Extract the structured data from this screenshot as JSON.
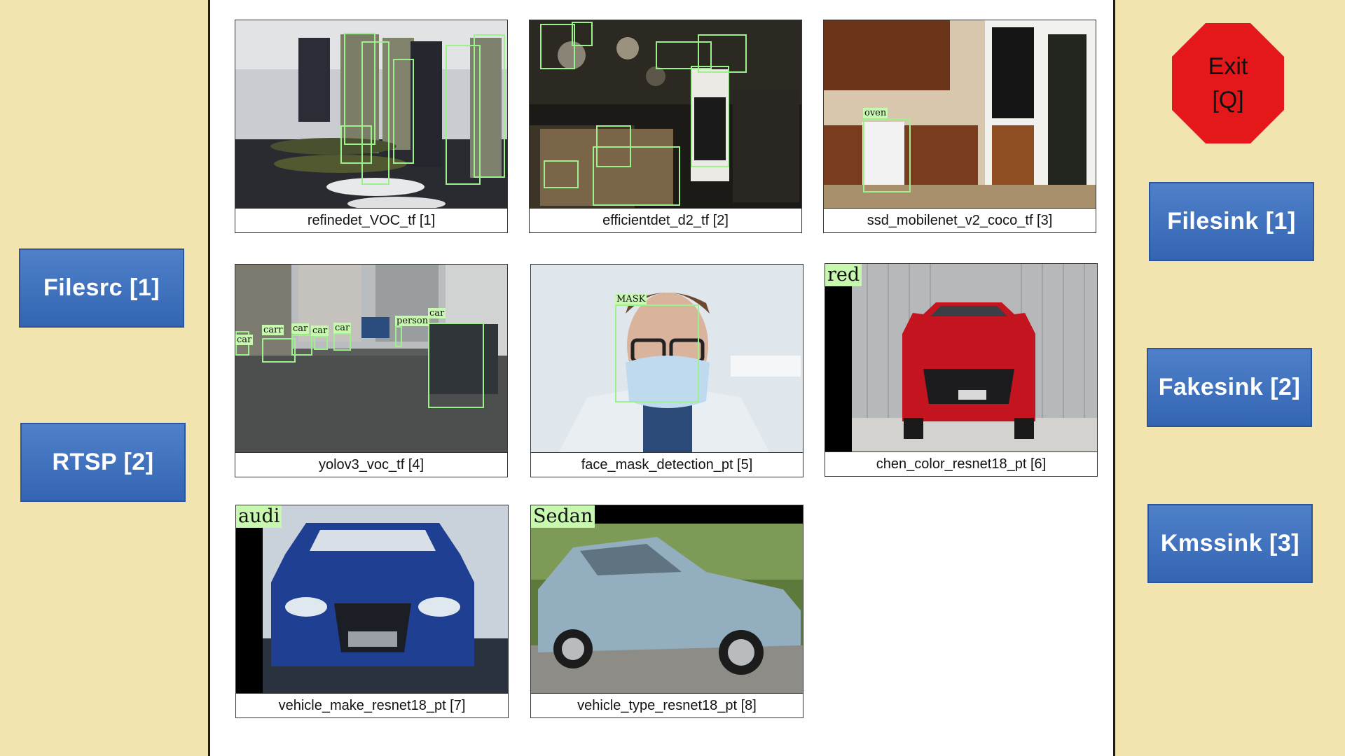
{
  "left_buttons": [
    {
      "label": "Filesrc [1]"
    },
    {
      "label": "RTSP [2]"
    }
  ],
  "right_buttons": [
    {
      "label": "Filesink [1]"
    },
    {
      "label": "Fakesink [2]"
    },
    {
      "label": "Kmssink [3]"
    }
  ],
  "exit": {
    "line1": "Exit",
    "line2": "[Q]",
    "color": "#e4171b"
  },
  "tiles": [
    {
      "caption": "refinedet_VOC_tf [1]",
      "labels": []
    },
    {
      "caption": "efficientdet_d2_tf [2]",
      "labels": []
    },
    {
      "caption": "ssd_mobilenet_v2_coco_tf [3]",
      "labels": [
        "oven"
      ]
    },
    {
      "caption": "yolov3_voc_tf [4]",
      "labels": [
        "car",
        "carr",
        "car",
        "car",
        "car",
        "person",
        "car"
      ]
    },
    {
      "caption": "face_mask_detection_pt [5]",
      "labels": [
        "MASK"
      ]
    },
    {
      "caption": "chen_color_resnet18_pt [6]",
      "labels": [
        "red"
      ]
    },
    {
      "caption": "vehicle_make_resnet18_pt [7]",
      "labels": [
        "audi"
      ]
    },
    {
      "caption": "vehicle_type_resnet18_pt [8]",
      "labels": [
        "Sedan"
      ]
    }
  ],
  "colors": {
    "background": "#f1e4ae",
    "button": "#3f70bf",
    "box": "#9df08c"
  }
}
